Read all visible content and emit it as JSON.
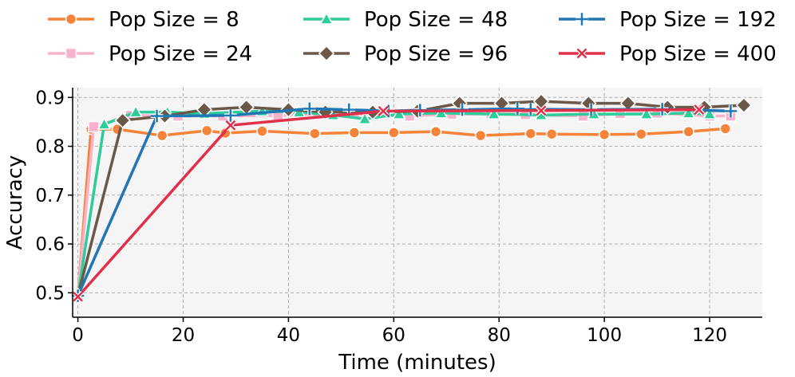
{
  "chart_data": {
    "type": "line",
    "xlabel": "Time (minutes)",
    "ylabel": "Accuracy",
    "xlim": [
      -1,
      130
    ],
    "ylim": [
      0.45,
      0.92
    ],
    "xticks": [
      0,
      20,
      40,
      60,
      80,
      100,
      120
    ],
    "yticks": [
      0.5,
      0.6,
      0.7,
      0.8,
      0.9
    ],
    "xtick_labels": [
      "0",
      "20",
      "40",
      "60",
      "80",
      "100",
      "120"
    ],
    "ytick_labels": [
      "0.5",
      "0.6",
      "0.7",
      "0.8",
      "0.9"
    ],
    "grid": true,
    "legend_position": "top (above plot, 3 columns)",
    "series": [
      {
        "name": "Pop Size = 8",
        "color": "#f5843a",
        "marker": "circle",
        "x": [
          0,
          2.5,
          7.5,
          16,
          24.5,
          28,
          35,
          45,
          52.5,
          60,
          68,
          76.5,
          86,
          90,
          100,
          107,
          116,
          123
        ],
        "y": [
          0.494,
          0.835,
          0.835,
          0.822,
          0.832,
          0.827,
          0.831,
          0.826,
          0.828,
          0.828,
          0.83,
          0.822,
          0.826,
          0.825,
          0.824,
          0.825,
          0.83,
          0.836
        ]
      },
      {
        "name": "Pop Size = 24",
        "color": "#f9b2cc",
        "marker": "square",
        "x": [
          0,
          3,
          10,
          19,
          27.5,
          38,
          45.5,
          52.5,
          63,
          71,
          78.5,
          85,
          96,
          103,
          110,
          120,
          124
        ],
        "y": [
          0.494,
          0.84,
          0.863,
          0.862,
          0.862,
          0.863,
          0.866,
          0.866,
          0.862,
          0.866,
          0.866,
          0.865,
          0.862,
          0.867,
          0.868,
          0.862,
          0.862
        ]
      },
      {
        "name": "Pop Size = 48",
        "color": "#2ecc9a",
        "marker": "triangle",
        "x": [
          0,
          5,
          11,
          17,
          24,
          35,
          42,
          48.5,
          54.5,
          61,
          69,
          79,
          88,
          98,
          108,
          116,
          120
        ],
        "y": [
          0.494,
          0.845,
          0.87,
          0.87,
          0.867,
          0.872,
          0.87,
          0.864,
          0.856,
          0.866,
          0.868,
          0.866,
          0.864,
          0.866,
          0.866,
          0.868,
          0.866
        ]
      },
      {
        "name": "Pop Size = 96",
        "color": "#6b5848",
        "marker": "diamond",
        "x": [
          0,
          8.5,
          16.5,
          24,
          32,
          40,
          47,
          56,
          64.5,
          72.5,
          80.5,
          88,
          97,
          104.5,
          112,
          119,
          126.5
        ],
        "y": [
          0.494,
          0.853,
          0.862,
          0.875,
          0.88,
          0.875,
          0.87,
          0.87,
          0.872,
          0.888,
          0.888,
          0.892,
          0.888,
          0.888,
          0.88,
          0.88,
          0.884
        ]
      },
      {
        "name": "Pop Size = 192",
        "color": "#1f77b4",
        "marker": "plus",
        "x": [
          0,
          15,
          29,
          44,
          51.5,
          59,
          65,
          73,
          83.5,
          86,
          97.5,
          111,
          124
        ],
        "y": [
          0.494,
          0.862,
          0.863,
          0.877,
          0.875,
          0.872,
          0.874,
          0.875,
          0.877,
          0.876,
          0.875,
          0.876,
          0.872
        ]
      },
      {
        "name": "Pop Size = 400",
        "color": "#e0304a",
        "marker": "x",
        "x": [
          0,
          29,
          58,
          88,
          118
        ],
        "y": [
          0.492,
          0.843,
          0.872,
          0.873,
          0.875
        ]
      }
    ]
  }
}
